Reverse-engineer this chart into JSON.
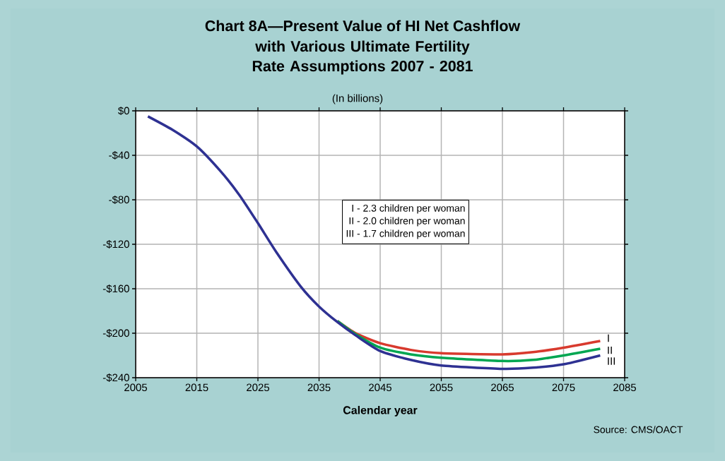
{
  "chart_data": {
    "type": "line",
    "title": "Chart 8A—Present Value of HI Net Cashflow",
    "subtitle": "with Various Ultimate Fertility Rate Assumptions 2007 - 2081",
    "xlabel": "Calendar year",
    "annotations": [
      "(In billions)",
      "I - 2.3  children per woman",
      "II - 2.0  children per woman",
      "III - 1.7  children per woman",
      "Source: CMS/OACT"
    ],
    "series": [
      {
        "name": "I",
        "color": "#d83a2e",
        "x": [
          2038,
          2041,
          2045,
          2050,
          2055,
          2065,
          2070,
          2075,
          2081
        ],
        "values": [
          -189,
          -200,
          -209,
          -215,
          -218,
          -219,
          -217,
          -213,
          -207
        ]
      },
      {
        "name": "II",
        "color": "#00a651",
        "x": [
          2038,
          2041,
          2045,
          2050,
          2055,
          2065,
          2070,
          2075,
          2081
        ],
        "values": [
          -189,
          -201,
          -213,
          -219,
          -222,
          -225,
          -224,
          -220,
          -214
        ]
      },
      {
        "name": "III",
        "color": "#2e3192",
        "x": [
          2007,
          2011,
          2015,
          2019,
          2022,
          2025,
          2028,
          2032,
          2035,
          2038,
          2041,
          2045,
          2050,
          2055,
          2065,
          2070,
          2075,
          2081
        ],
        "values": [
          -5,
          -17,
          -32,
          -55,
          -76,
          -101,
          -127,
          -158,
          -176,
          -190,
          -202,
          -216,
          -224,
          -229,
          -232,
          -231,
          -228,
          -220
        ]
      }
    ],
    "xlim": [
      2005,
      2085
    ],
    "xticks": [
      2005,
      2015,
      2025,
      2035,
      2045,
      2055,
      2065,
      2075,
      2085
    ],
    "ylim": [
      -240,
      0
    ],
    "yticks": [
      {
        "value": 0,
        "label": "$0"
      },
      {
        "value": -40,
        "label": "-$40"
      },
      {
        "value": -80,
        "label": "-$80"
      },
      {
        "value": -120,
        "label": "-$120"
      },
      {
        "value": -160,
        "label": "-$160"
      },
      {
        "value": -200,
        "label": "-$200"
      },
      {
        "value": -240,
        "label": "-$240"
      }
    ],
    "grid": true,
    "marker": "none",
    "line_style": "solid"
  }
}
